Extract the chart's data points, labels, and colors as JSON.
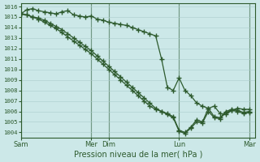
{
  "title": "Pression niveau de la mer( hPa )",
  "background_color": "#cce8e8",
  "grid_color": "#aacccc",
  "line_color": "#2d5a2d",
  "ylim": [
    1003.5,
    1016.3
  ],
  "yticks": [
    1004,
    1005,
    1006,
    1007,
    1008,
    1009,
    1010,
    1011,
    1012,
    1013,
    1014,
    1015,
    1016
  ],
  "day_labels": [
    "Sam",
    "Mer",
    "Dim",
    "Lun",
    "Mar"
  ],
  "day_positions": [
    0,
    96,
    120,
    216,
    312
  ],
  "xlim": [
    0,
    320
  ],
  "series1_x": [
    0,
    8,
    16,
    24,
    32,
    40,
    48,
    56,
    64,
    72,
    80,
    88,
    96,
    104,
    112,
    120,
    128,
    136,
    144,
    152,
    160,
    168,
    176,
    184,
    192,
    200,
    208,
    216,
    224,
    232,
    240,
    248,
    256,
    264,
    272,
    280,
    288,
    296,
    304,
    312
  ],
  "series1_y": [
    1015.3,
    1015.7,
    1015.8,
    1015.6,
    1015.5,
    1015.4,
    1015.3,
    1015.5,
    1015.6,
    1015.2,
    1015.1,
    1015.0,
    1015.1,
    1014.8,
    1014.7,
    1014.5,
    1014.4,
    1014.3,
    1014.2,
    1014.0,
    1013.8,
    1013.6,
    1013.4,
    1013.2,
    1011.0,
    1008.3,
    1008.0,
    1009.2,
    1008.0,
    1007.5,
    1006.8,
    1006.5,
    1006.3,
    1006.5,
    1005.8,
    1005.7,
    1006.1,
    1006.3,
    1006.2,
    1006.2
  ],
  "series2_x": [
    0,
    8,
    16,
    24,
    32,
    40,
    48,
    56,
    64,
    72,
    80,
    88,
    96,
    104,
    112,
    120,
    128,
    136,
    144,
    152,
    160,
    168,
    176,
    184,
    192,
    200,
    208,
    216,
    224,
    232,
    240,
    248,
    256,
    264,
    272,
    280,
    288,
    296,
    304,
    312
  ],
  "series2_y": [
    1015.3,
    1015.2,
    1015.0,
    1014.9,
    1014.7,
    1014.4,
    1014.1,
    1013.8,
    1013.4,
    1013.0,
    1012.6,
    1012.2,
    1011.8,
    1011.3,
    1010.8,
    1010.3,
    1009.8,
    1009.3,
    1008.8,
    1008.3,
    1007.8,
    1007.3,
    1006.8,
    1006.3,
    1006.0,
    1005.8,
    1005.5,
    1004.2,
    1004.0,
    1004.5,
    1005.2,
    1005.0,
    1006.3,
    1005.5,
    1005.4,
    1006.0,
    1006.2,
    1006.1,
    1005.9,
    1006.0
  ],
  "series3_x": [
    0,
    8,
    16,
    24,
    32,
    40,
    48,
    56,
    64,
    72,
    80,
    88,
    96,
    104,
    112,
    120,
    128,
    136,
    144,
    152,
    160,
    168,
    176,
    184,
    192,
    200,
    208,
    216,
    224,
    232,
    240,
    248,
    256,
    264,
    272,
    280,
    288,
    296,
    304,
    312
  ],
  "series3_y": [
    1015.3,
    1015.2,
    1015.0,
    1014.8,
    1014.5,
    1014.2,
    1013.9,
    1013.5,
    1013.1,
    1012.7,
    1012.3,
    1011.9,
    1011.5,
    1011.0,
    1010.5,
    1010.0,
    1009.5,
    1009.0,
    1008.5,
    1008.0,
    1007.5,
    1007.0,
    1006.5,
    1006.2,
    1006.0,
    1005.7,
    1005.4,
    1004.1,
    1003.9,
    1004.4,
    1005.0,
    1004.9,
    1006.0,
    1005.4,
    1005.3,
    1005.9,
    1006.1,
    1006.0,
    1005.8,
    1005.9
  ]
}
